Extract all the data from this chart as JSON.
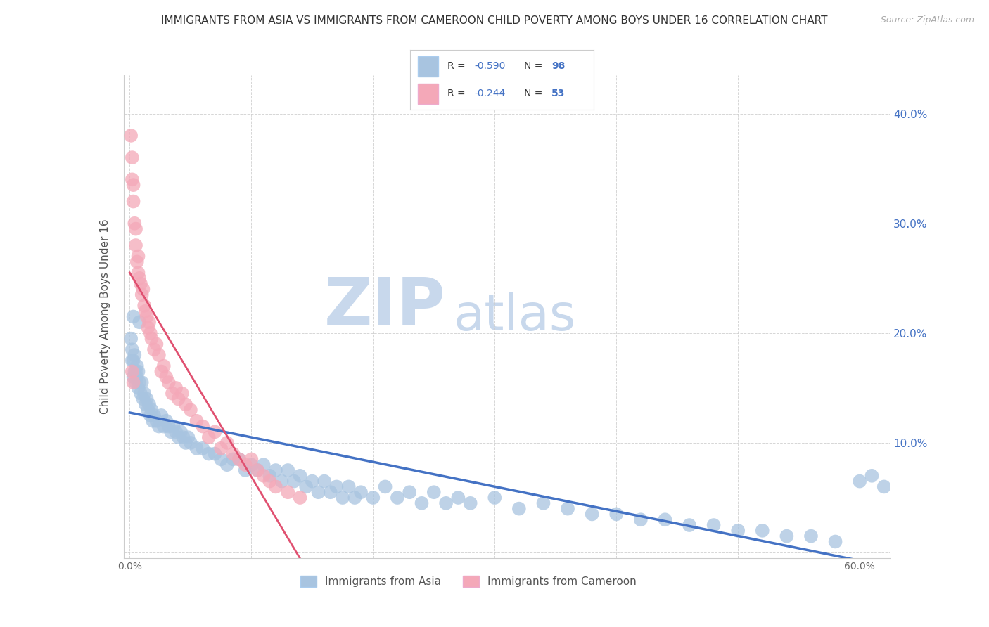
{
  "title": "IMMIGRANTS FROM ASIA VS IMMIGRANTS FROM CAMEROON CHILD POVERTY AMONG BOYS UNDER 16 CORRELATION CHART",
  "source": "Source: ZipAtlas.com",
  "ylabel": "Child Poverty Among Boys Under 16",
  "xlim": [
    -0.005,
    0.625
  ],
  "ylim": [
    -0.005,
    0.435
  ],
  "xticks": [
    0.0,
    0.1,
    0.2,
    0.3,
    0.4,
    0.5,
    0.6
  ],
  "xtick_labels": [
    "0.0%",
    "",
    "",
    "",
    "",
    "",
    "60.0%"
  ],
  "yticks_left": [
    0.0,
    0.1,
    0.2,
    0.3,
    0.4
  ],
  "yticks_right": [
    0.1,
    0.2,
    0.3,
    0.4
  ],
  "ytick_labels_right": [
    "10.0%",
    "20.0%",
    "30.0%",
    "40.0%"
  ],
  "legend_asia": "Immigrants from Asia",
  "legend_cameroon": "Immigrants from Cameroon",
  "r_asia": -0.59,
  "n_asia": 98,
  "r_cameroon": -0.244,
  "n_cameroon": 53,
  "blue_color": "#a8c4e0",
  "pink_color": "#f4a8b8",
  "blue_line_color": "#4472c4",
  "pink_line_color": "#e05070",
  "watermark_zip_color": "#c8d8ec",
  "watermark_atlas_color": "#c8d8ec",
  "background_color": "#ffffff",
  "grid_color": "#cccccc",
  "title_color": "#333333",
  "right_tick_color": "#4472c4",
  "scatter_size": 200,
  "asia_x": [
    0.001,
    0.002,
    0.002,
    0.003,
    0.003,
    0.004,
    0.004,
    0.005,
    0.005,
    0.006,
    0.006,
    0.007,
    0.007,
    0.008,
    0.009,
    0.01,
    0.011,
    0.012,
    0.013,
    0.014,
    0.015,
    0.016,
    0.017,
    0.018,
    0.019,
    0.02,
    0.022,
    0.024,
    0.026,
    0.028,
    0.03,
    0.032,
    0.034,
    0.036,
    0.038,
    0.04,
    0.042,
    0.044,
    0.046,
    0.048,
    0.05,
    0.055,
    0.06,
    0.065,
    0.07,
    0.075,
    0.08,
    0.085,
    0.09,
    0.095,
    0.1,
    0.105,
    0.11,
    0.115,
    0.12,
    0.125,
    0.13,
    0.135,
    0.14,
    0.145,
    0.15,
    0.155,
    0.16,
    0.165,
    0.17,
    0.175,
    0.18,
    0.185,
    0.19,
    0.2,
    0.21,
    0.22,
    0.23,
    0.24,
    0.25,
    0.26,
    0.27,
    0.28,
    0.3,
    0.32,
    0.34,
    0.36,
    0.38,
    0.4,
    0.42,
    0.44,
    0.46,
    0.48,
    0.5,
    0.52,
    0.54,
    0.56,
    0.58,
    0.6,
    0.61,
    0.62,
    0.008,
    0.003
  ],
  "asia_y": [
    0.195,
    0.175,
    0.185,
    0.16,
    0.175,
    0.165,
    0.18,
    0.155,
    0.165,
    0.16,
    0.17,
    0.15,
    0.165,
    0.155,
    0.145,
    0.155,
    0.14,
    0.145,
    0.135,
    0.14,
    0.13,
    0.135,
    0.125,
    0.13,
    0.12,
    0.125,
    0.12,
    0.115,
    0.125,
    0.115,
    0.12,
    0.115,
    0.11,
    0.115,
    0.11,
    0.105,
    0.11,
    0.105,
    0.1,
    0.105,
    0.1,
    0.095,
    0.095,
    0.09,
    0.09,
    0.085,
    0.08,
    0.085,
    0.085,
    0.075,
    0.08,
    0.075,
    0.08,
    0.07,
    0.075,
    0.065,
    0.075,
    0.065,
    0.07,
    0.06,
    0.065,
    0.055,
    0.065,
    0.055,
    0.06,
    0.05,
    0.06,
    0.05,
    0.055,
    0.05,
    0.06,
    0.05,
    0.055,
    0.045,
    0.055,
    0.045,
    0.05,
    0.045,
    0.05,
    0.04,
    0.045,
    0.04,
    0.035,
    0.035,
    0.03,
    0.03,
    0.025,
    0.025,
    0.02,
    0.02,
    0.015,
    0.015,
    0.01,
    0.065,
    0.07,
    0.06,
    0.21,
    0.215
  ],
  "cameroon_x": [
    0.001,
    0.002,
    0.002,
    0.003,
    0.003,
    0.004,
    0.005,
    0.005,
    0.006,
    0.007,
    0.007,
    0.008,
    0.009,
    0.01,
    0.011,
    0.012,
    0.013,
    0.014,
    0.015,
    0.016,
    0.017,
    0.018,
    0.02,
    0.022,
    0.024,
    0.026,
    0.028,
    0.03,
    0.032,
    0.035,
    0.038,
    0.04,
    0.043,
    0.046,
    0.05,
    0.055,
    0.06,
    0.065,
    0.07,
    0.075,
    0.08,
    0.085,
    0.09,
    0.095,
    0.1,
    0.105,
    0.11,
    0.115,
    0.12,
    0.13,
    0.14,
    0.002,
    0.003
  ],
  "cameroon_y": [
    0.38,
    0.36,
    0.34,
    0.32,
    0.335,
    0.3,
    0.28,
    0.295,
    0.265,
    0.255,
    0.27,
    0.25,
    0.245,
    0.235,
    0.24,
    0.225,
    0.22,
    0.215,
    0.205,
    0.21,
    0.2,
    0.195,
    0.185,
    0.19,
    0.18,
    0.165,
    0.17,
    0.16,
    0.155,
    0.145,
    0.15,
    0.14,
    0.145,
    0.135,
    0.13,
    0.12,
    0.115,
    0.105,
    0.11,
    0.095,
    0.1,
    0.09,
    0.085,
    0.08,
    0.085,
    0.075,
    0.07,
    0.065,
    0.06,
    0.055,
    0.05,
    0.165,
    0.155
  ]
}
